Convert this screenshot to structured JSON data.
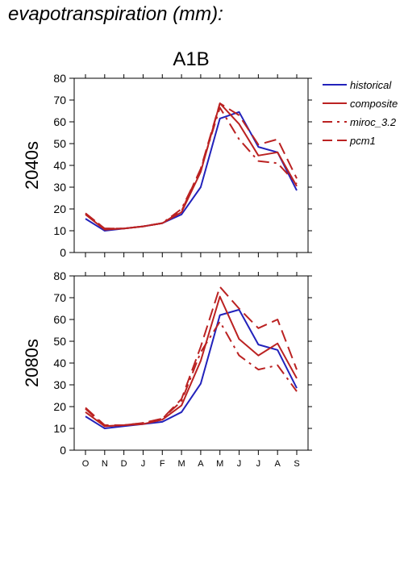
{
  "heading": "evapotranspiration (mm):",
  "colors": {
    "historical": "#2222bb",
    "projection": "#bb2222",
    "axis": "#000000"
  },
  "chart_data": {
    "type": "line",
    "title": "A1B",
    "categories": [
      "O",
      "N",
      "D",
      "J",
      "F",
      "M",
      "A",
      "M",
      "J",
      "J",
      "A",
      "S"
    ],
    "ylim": [
      0,
      80
    ],
    "yticks": [
      0,
      10,
      20,
      30,
      40,
      50,
      60,
      70,
      80
    ],
    "legend": {
      "placement": "right",
      "entries": [
        {
          "name": "historical",
          "style": "solid",
          "color": "historical"
        },
        {
          "name": "composite",
          "style": "solid",
          "color": "projection"
        },
        {
          "name": "miroc_3.2",
          "style": "dashdot",
          "color": "projection"
        },
        {
          "name": "pcm1",
          "style": "dashed",
          "color": "projection"
        }
      ]
    },
    "panels": [
      {
        "ylabel": "2040s",
        "series": [
          {
            "name": "historical",
            "values": [
              15.5,
              10,
              11,
              12,
              13.5,
              17.5,
              30,
              61.5,
              64.5,
              48.5,
              46,
              28.5
            ]
          },
          {
            "name": "composite",
            "values": [
              17.5,
              10.5,
              11,
              12,
              13.5,
              18.5,
              37,
              68.5,
              59,
              44.5,
              46,
              30.5
            ]
          },
          {
            "name": "miroc_3.2",
            "values": [
              18,
              11,
              11,
              12,
              13.5,
              20,
              38,
              66.5,
              52,
              42,
              41,
              31.5
            ]
          },
          {
            "name": "pcm1",
            "values": [
              18,
              11,
              11,
              12,
              13.5,
              19,
              38.5,
              68.5,
              63,
              49.5,
              52,
              34
            ]
          }
        ]
      },
      {
        "ylabel": "2080s",
        "series": [
          {
            "name": "historical",
            "values": [
              15.5,
              10,
              11,
              12,
              13,
              17.5,
              30.5,
              62,
              64.5,
              48.5,
              46,
              28.5
            ]
          },
          {
            "name": "composite",
            "values": [
              17.5,
              11,
              11.5,
              12,
              14,
              20.5,
              41,
              70.5,
              51,
              43.5,
              49,
              33
            ]
          },
          {
            "name": "miroc_3.2",
            "values": [
              19,
              11,
              11.5,
              12.5,
              14.5,
              22.5,
              45,
              59,
              43.5,
              37,
              39,
              27
            ]
          },
          {
            "name": "pcm1",
            "values": [
              19.5,
              11.5,
              11.5,
              12.5,
              14.5,
              23.5,
              47.5,
              75,
              65,
              56,
              60,
              37
            ]
          }
        ]
      }
    ]
  }
}
